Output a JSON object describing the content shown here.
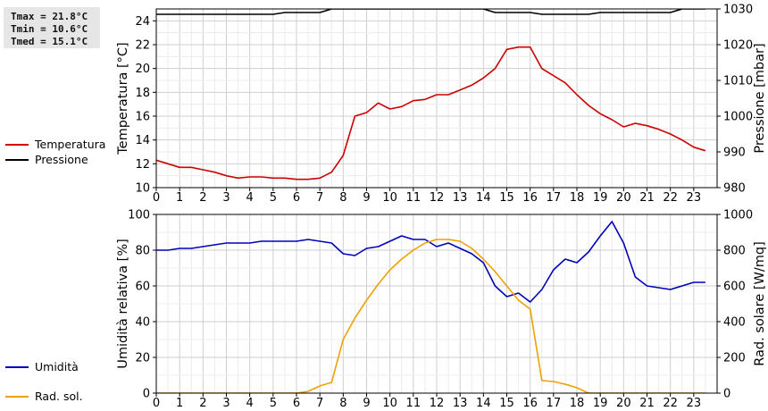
{
  "stats": {
    "tmax": "Tmax = 21.8°C",
    "tmin": "Tmin = 10.6°C",
    "tmed": "Tmed = 15.1°C"
  },
  "legend_top": [
    {
      "label": "Temperatura",
      "color": "#cc0000"
    },
    {
      "label": "Pressione",
      "color": "#000000"
    }
  ],
  "legend_bottom": [
    {
      "label": "Umidità",
      "color": "#0000bb"
    },
    {
      "label": "Rad. sol.",
      "color": "#f0a000"
    }
  ],
  "chart_data": [
    {
      "type": "line",
      "ylabel": "Temperatura [°C]",
      "y2label": "Pressione [mbar]",
      "xlim": [
        0,
        24
      ],
      "ylim": [
        10,
        25
      ],
      "y2lim": [
        980,
        1030
      ],
      "x_ticks": [
        "0",
        "1",
        "2",
        "3",
        "4",
        "5",
        "6",
        "7",
        "8",
        "9",
        "10",
        "11",
        "12",
        "13",
        "14",
        "15",
        "16",
        "17",
        "18",
        "19",
        "20",
        "21",
        "22",
        "23"
      ],
      "y_ticks": [
        10,
        12,
        14,
        16,
        18,
        20,
        22,
        24
      ],
      "y2_ticks": [
        980,
        990,
        1000,
        1010,
        1020,
        1030
      ],
      "grid": true,
      "series": [
        {
          "name": "Temperatura",
          "axis": "left",
          "color": "#cc0000",
          "x": [
            0,
            0.5,
            1,
            1.5,
            2,
            2.5,
            3,
            3.5,
            4,
            4.5,
            5,
            5.5,
            6,
            6.5,
            7,
            7.5,
            8,
            8.5,
            9,
            9.5,
            10,
            10.5,
            11,
            11.5,
            12,
            12.5,
            13,
            13.5,
            14,
            14.5,
            15,
            15.5,
            16,
            16.5,
            17,
            17.5,
            18,
            18.5,
            19,
            19.5,
            20,
            20.5,
            21,
            21.5,
            22,
            22.5,
            23,
            23.5
          ],
          "values": [
            12.3,
            12,
            11.7,
            11.7,
            11.5,
            11.3,
            11,
            10.8,
            10.9,
            10.9,
            10.8,
            10.8,
            10.7,
            10.7,
            10.8,
            11.3,
            12.7,
            16,
            16.3,
            17.1,
            16.6,
            16.8,
            17.3,
            17.4,
            17.8,
            17.8,
            18.2,
            18.6,
            19.2,
            20,
            21.6,
            21.8,
            21.8,
            20,
            19.4,
            18.8,
            17.8,
            16.9,
            16.2,
            15.7,
            15.1,
            15.4,
            15.2,
            14.9,
            14.5,
            14,
            13.4,
            13.1
          ]
        },
        {
          "name": "Pressione",
          "axis": "right",
          "color": "#000000",
          "x": [
            0,
            5,
            5.5,
            6,
            7,
            7.5,
            14,
            14.5,
            16,
            16.5,
            18.5,
            19,
            22,
            22.5,
            23.5
          ],
          "values": [
            1028.5,
            1028.5,
            1029,
            1029,
            1029,
            1030,
            1030,
            1029,
            1029,
            1028.5,
            1028.5,
            1029,
            1029,
            1030,
            1030
          ]
        }
      ]
    },
    {
      "type": "line",
      "ylabel": "Umidità relativa [%]",
      "y2label": "Rad. solare [W/mq]",
      "xlim": [
        0,
        24
      ],
      "ylim": [
        0,
        100
      ],
      "y2lim": [
        0,
        1000
      ],
      "x_ticks": [
        "0",
        "1",
        "2",
        "3",
        "4",
        "5",
        "6",
        "7",
        "8",
        "9",
        "10",
        "11",
        "12",
        "13",
        "14",
        "15",
        "16",
        "17",
        "18",
        "19",
        "20",
        "21",
        "22",
        "23"
      ],
      "y_ticks": [
        0,
        20,
        40,
        60,
        80,
        100
      ],
      "y2_ticks": [
        0,
        200,
        400,
        600,
        800,
        1000
      ],
      "grid": true,
      "series": [
        {
          "name": "Umidità",
          "axis": "left",
          "color": "#0000bb",
          "x": [
            0,
            0.5,
            1,
            1.5,
            2,
            2.5,
            3,
            3.5,
            4,
            4.5,
            5,
            5.5,
            6,
            6.5,
            7,
            7.5,
            8,
            8.5,
            9,
            9.5,
            10,
            10.5,
            11,
            11.5,
            12,
            12.5,
            13,
            13.5,
            14,
            14.5,
            15,
            15.5,
            16,
            16.5,
            17,
            17.5,
            18,
            18.5,
            19,
            19.5,
            20,
            20.5,
            21,
            21.5,
            22,
            22.5,
            23,
            23.5
          ],
          "values": [
            80,
            80,
            81,
            81,
            82,
            83,
            84,
            84,
            84,
            85,
            85,
            85,
            85,
            86,
            85,
            84,
            78,
            77,
            81,
            82,
            85,
            88,
            86,
            86,
            82,
            84,
            81,
            78,
            73,
            60,
            54,
            56,
            51,
            58,
            69,
            75,
            73,
            79,
            88,
            96,
            84,
            65,
            60,
            59,
            58,
            60,
            62,
            62
          ]
        },
        {
          "name": "Rad. sol.",
          "axis": "right",
          "color": "#f0a000",
          "x": [
            0,
            6,
            6.5,
            7,
            7.5,
            8,
            8.5,
            9,
            9.5,
            10,
            10.5,
            11,
            11.5,
            12,
            12.5,
            13,
            13.5,
            14,
            14.5,
            15,
            15.5,
            16,
            16.5,
            17,
            17.5,
            18,
            18.5,
            19,
            23.5
          ],
          "values": [
            0,
            0,
            10,
            40,
            60,
            300,
            420,
            520,
            610,
            690,
            750,
            800,
            840,
            860,
            860,
            850,
            810,
            750,
            680,
            600,
            520,
            470,
            70,
            65,
            50,
            30,
            0,
            0,
            0
          ]
        }
      ]
    }
  ]
}
